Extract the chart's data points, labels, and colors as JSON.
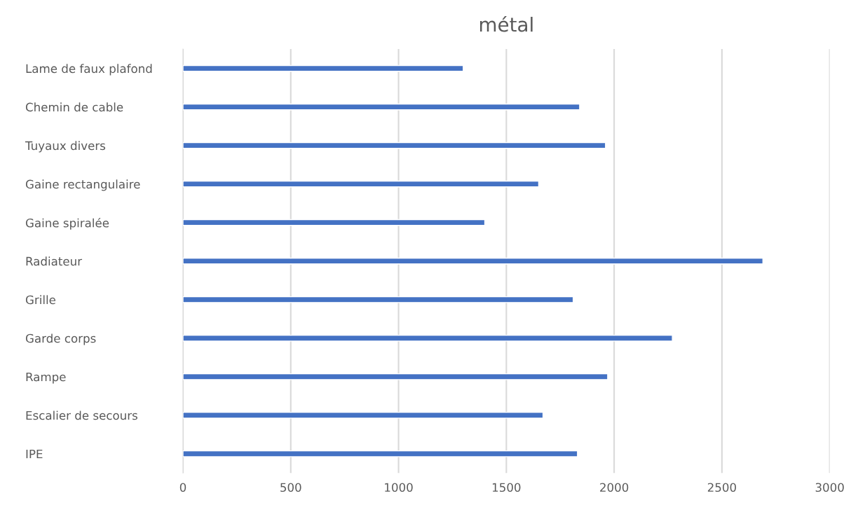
{
  "chart_data": {
    "type": "bar",
    "orientation": "horizontal",
    "title": "métal",
    "categories": [
      "Lame de faux plafond",
      "Chemin de cable",
      "Tuyaux divers",
      "Gaine rectangulaire",
      "Gaine spiralée",
      "Radiateur",
      "Grille",
      "Garde corps",
      "Rampe",
      "Escalier de secours",
      "IPE"
    ],
    "values": [
      1300,
      1840,
      1960,
      1650,
      1400,
      2690,
      1810,
      2270,
      1970,
      1670,
      1830
    ],
    "color": "#4472c4",
    "xlim": [
      0,
      3000
    ],
    "xticks": [
      0,
      500,
      1000,
      1500,
      2000,
      2500,
      3000
    ],
    "grid": "x"
  }
}
